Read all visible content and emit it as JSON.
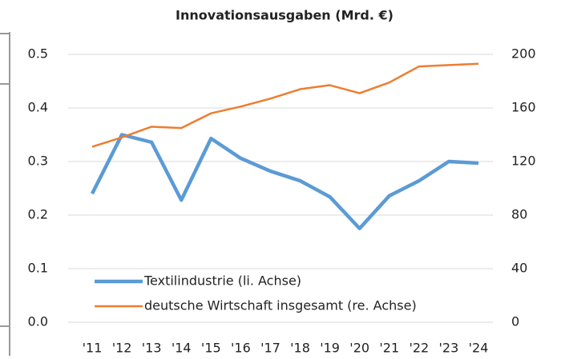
{
  "chart_data": {
    "type": "line",
    "title": "Innovationsausgaben (Mrd. €)",
    "categories": [
      "'11",
      "'12",
      "'13",
      "'14",
      "'15",
      "'16",
      "'17",
      "'18",
      "'19",
      "'20",
      "'21",
      "'22",
      "'23",
      "'24"
    ],
    "series": [
      {
        "name": "Textilindustrie (li. Achse)",
        "color": "#5b9bd5",
        "values": [
          0.24,
          0.35,
          0.336,
          0.228,
          0.343,
          0.306,
          0.282,
          0.264,
          0.234,
          0.175,
          0.236,
          0.264,
          0.3,
          0.297
        ]
      },
      {
        "name": "deutsche Wirtschaft insgesamt (re. Achse)",
        "color": "#ed7d31",
        "axis": "y2",
        "values": [
          131,
          138,
          146,
          145,
          156,
          161,
          167,
          174,
          177,
          171,
          179,
          191,
          192,
          193
        ]
      }
    ],
    "ylim": [
      0,
      0.5
    ],
    "yticks": [
      {
        "value": 0,
        "label": "0.0"
      },
      0.1,
      0.2,
      0.3,
      0.4,
      0.5
    ],
    "y2lim": [
      0,
      200
    ],
    "y2ticks": [
      0,
      40,
      80,
      120,
      160,
      200
    ],
    "grid": true,
    "legend": "lower left"
  }
}
